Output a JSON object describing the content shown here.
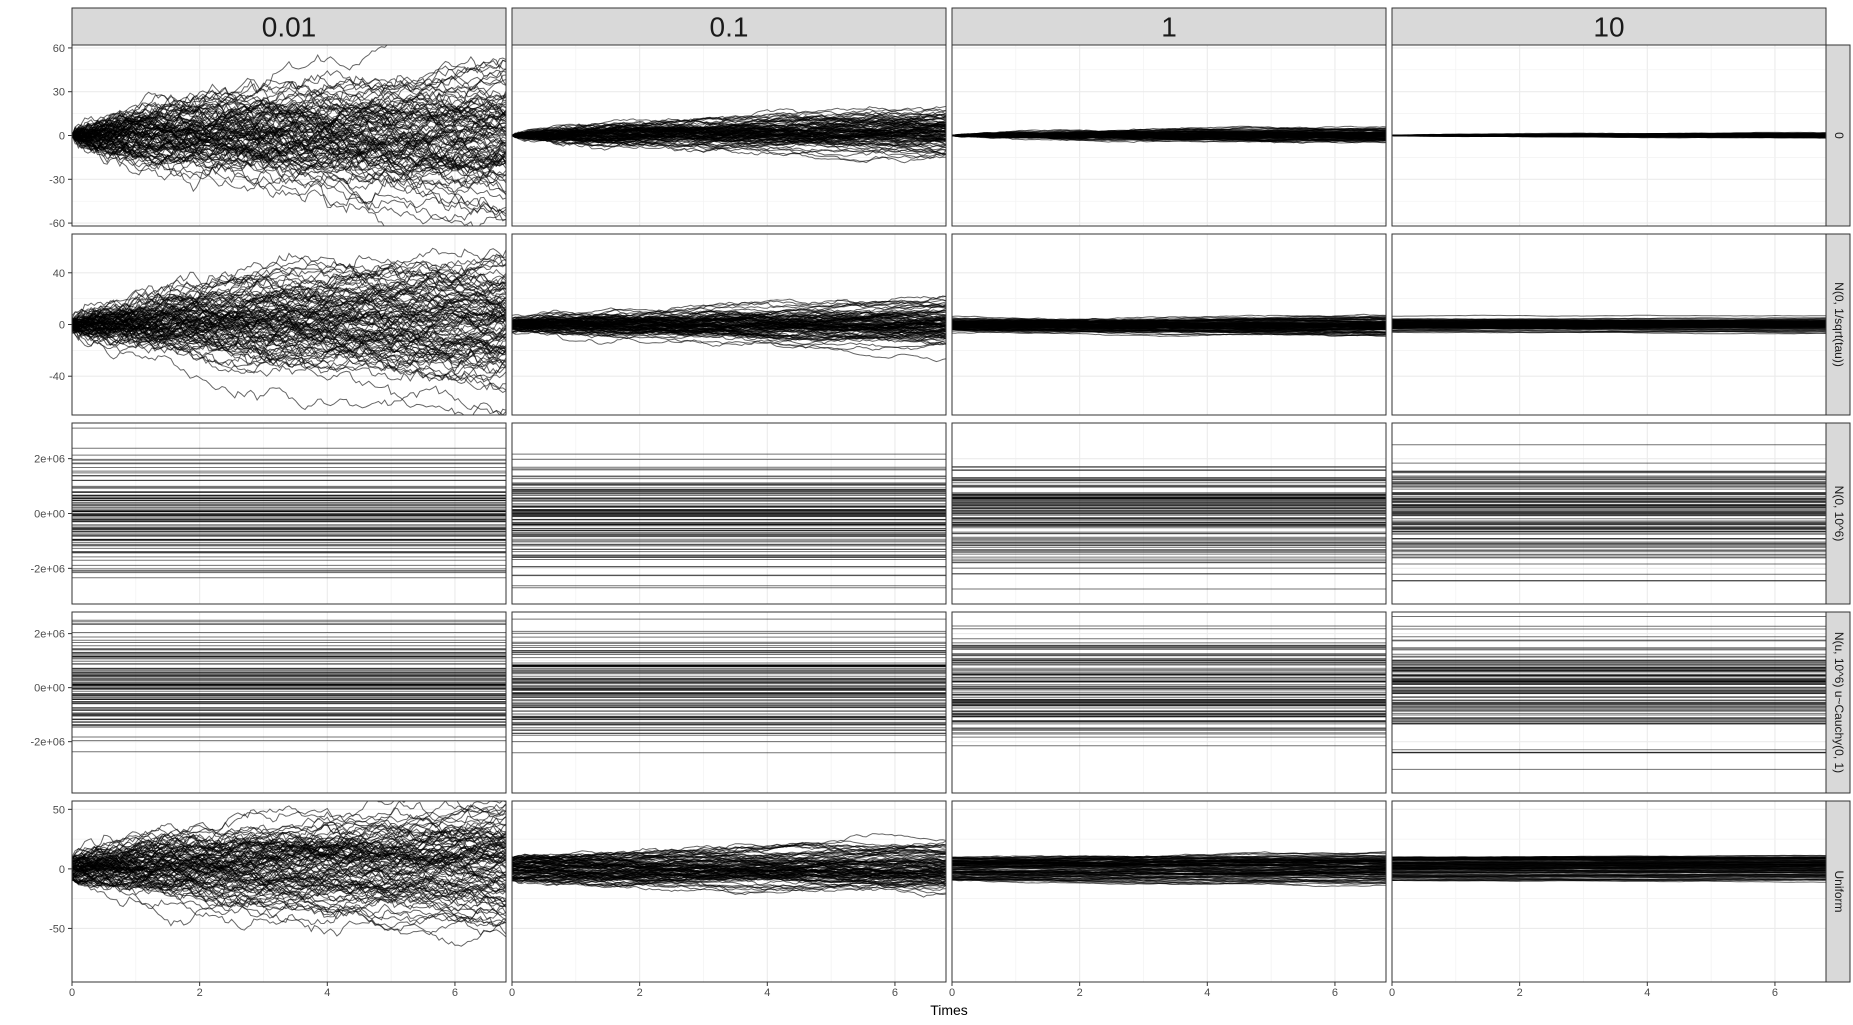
{
  "chart_data": {
    "type": "line",
    "x_label": "Times",
    "x_ticks": [
      "0",
      "2",
      "4",
      "6"
    ],
    "x_tick_values": [
      0,
      2,
      4,
      6
    ],
    "x_range": [
      0,
      6.8
    ],
    "col_labels": [
      "0.01",
      "0.1",
      "1",
      "10"
    ],
    "col_taus": [
      0.01,
      0.1,
      1,
      10
    ],
    "rows": [
      {
        "label": "0",
        "kind": "walk",
        "y_range": [
          -62,
          62
        ],
        "y_ticks": [
          "60",
          "30",
          "0",
          "-30",
          "-60"
        ],
        "y_tick_values": [
          60,
          30,
          0,
          -30,
          -60
        ],
        "start_spread": 0,
        "start_type": "point"
      },
      {
        "label": "N(0, 1/sqrt(tau))",
        "kind": "walk",
        "y_range": [
          -70,
          70
        ],
        "y_ticks": [
          "40",
          "0",
          "-40"
        ],
        "y_tick_values": [
          40,
          0,
          -40
        ],
        "start_spread": 2.5,
        "start_type": "normal"
      },
      {
        "label": "N(0, 10^6)",
        "kind": "flat",
        "y_range": [
          -3300000,
          3300000
        ],
        "y_ticks": [
          "2e+06",
          "0e+00",
          "-2e+06"
        ],
        "y_tick_values": [
          2000000,
          0,
          -2000000
        ],
        "spread": 1000000
      },
      {
        "label": "N(u, 10^6) u~Cauchy(0, 1)",
        "kind": "flat",
        "y_range": [
          -3900000,
          2800000
        ],
        "y_ticks": [
          "2e+06",
          "0e+00",
          "-2e+06"
        ],
        "y_tick_values": [
          2000000,
          0,
          -2000000
        ],
        "spread": 1000000
      },
      {
        "label": "Uniform",
        "kind": "walk",
        "y_range": [
          -95,
          57
        ],
        "y_ticks": [
          "50",
          "0",
          "-50"
        ],
        "y_tick_values": [
          50,
          0,
          -50
        ],
        "start_spread": 10,
        "start_type": "uniform"
      }
    ],
    "n_series_per_panel": 100,
    "series_color": "#000000",
    "grid": true
  }
}
